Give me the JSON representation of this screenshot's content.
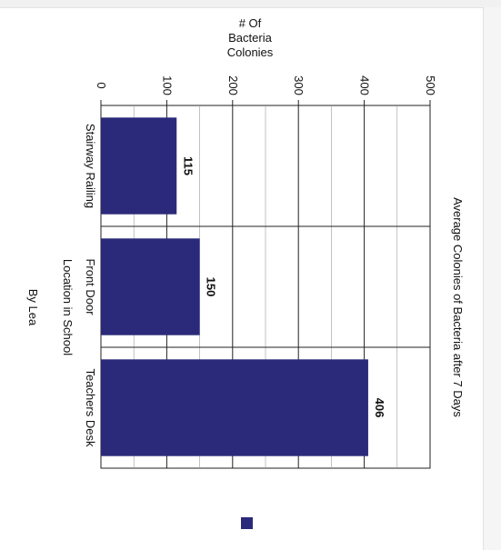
{
  "chart_data": {
    "type": "bar",
    "orientation": "rotated-90-clockwise",
    "title": "Average Colonies of Bacteria after 7 Days",
    "xlabel": "Location in School",
    "ylabel_lines": [
      "# Of",
      "Bacteria",
      "Colonies"
    ],
    "caption": "By Lea",
    "categories": [
      "Stairway Railing",
      "Front Door",
      "Teachers Desk"
    ],
    "series": [
      {
        "values": [
          115,
          150,
          406
        ],
        "color": "#2b2a7a"
      }
    ],
    "value_labels": [
      "115",
      "150",
      "406"
    ],
    "ylim": [
      0,
      500
    ],
    "yticks": [
      0,
      100,
      200,
      300,
      400,
      500
    ],
    "ytick_labels": [
      "0",
      "100",
      "200",
      "300",
      "400",
      "500"
    ],
    "grid": true,
    "legend": "bottom"
  }
}
